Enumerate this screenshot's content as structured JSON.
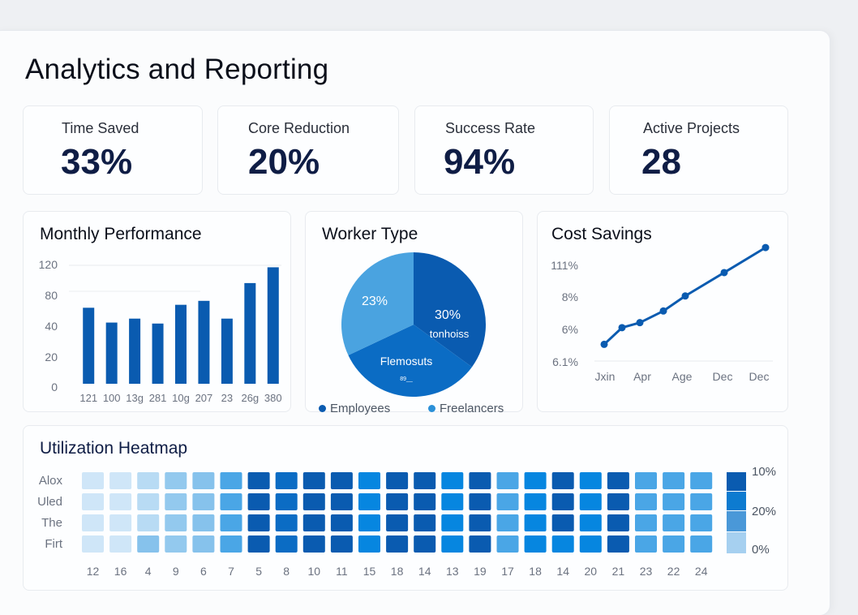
{
  "page": {
    "title": "Analytics and Reporting"
  },
  "kpis": [
    {
      "label": "Time Saved",
      "value": "33%"
    },
    {
      "label": "Core Reduction",
      "value": "20%"
    },
    {
      "label": "Success Rate",
      "value": "94%"
    },
    {
      "label": "Active Projects",
      "value": "28"
    }
  ],
  "colors": {
    "primary": "#0a5bb0",
    "light": "#4aa3e0",
    "mid": "#0b6cc4",
    "kpi_value": "#0f1d45"
  },
  "chart_data": [
    {
      "type": "bar",
      "title": "Monthly Performance",
      "categories": [
        "121",
        "100",
        "13g",
        "281",
        "10g",
        "207",
        "23",
        "26g",
        "380"
      ],
      "values": [
        77,
        62,
        66,
        61,
        80,
        84,
        66,
        102,
        118
      ],
      "ytick_labels": [
        "0",
        "20",
        "40",
        "80",
        "120"
      ],
      "ytick_values": [
        0,
        20,
        40,
        60,
        80
      ],
      "ylim": [
        0,
        120
      ],
      "xlabel": "",
      "ylabel": "",
      "grid": true
    },
    {
      "type": "pie",
      "title": "Worker Type",
      "slices": [
        {
          "label": "30% tonhoiss",
          "value": 35,
          "color": "#0a5bb0"
        },
        {
          "label": "Flemosuts",
          "sub": "89__",
          "value": 33,
          "color": "#0b6cc4"
        },
        {
          "label": "23%",
          "value": 32,
          "color": "#4aa3e0"
        }
      ],
      "legend": [
        {
          "label": "Employees",
          "color": "#0a5bb0"
        },
        {
          "label": "Freelancers",
          "color": "#2a90d8"
        }
      ],
      "legend_position": "bottom"
    },
    {
      "type": "line",
      "title": "Cost Savings",
      "x_labels": [
        "Jxin",
        "Apr",
        "Age",
        "Dec",
        "Dec"
      ],
      "values": [
        5.0,
        6.0,
        6.3,
        7.0,
        7.9,
        9.3,
        10.8
      ],
      "ytick_labels": [
        "6.1%",
        "6%",
        "8%",
        "111%"
      ],
      "ytick_values": [
        4,
        6,
        8,
        10
      ],
      "ylim": [
        4,
        11
      ],
      "grid": false
    },
    {
      "type": "heatmap",
      "title": "Utilization Heatmap",
      "rows": [
        "Alox",
        "Uled",
        "The",
        "Firt"
      ],
      "columns": [
        "12",
        "16",
        "4",
        "9",
        "6",
        "7",
        "5",
        "8",
        "10",
        "11",
        "15",
        "18",
        "14",
        "13",
        "19",
        "17",
        "18",
        "14",
        "20",
        "21",
        "23",
        "22",
        "24"
      ],
      "values": [
        [
          1,
          1,
          2,
          4,
          3,
          5,
          8,
          7,
          8,
          8,
          6,
          8,
          8,
          6,
          8,
          5,
          6,
          8,
          6,
          8,
          5,
          5,
          5
        ],
        [
          1,
          1,
          2,
          4,
          3,
          5,
          8,
          7,
          8,
          8,
          6,
          8,
          8,
          6,
          8,
          5,
          6,
          8,
          6,
          8,
          5,
          5,
          5
        ],
        [
          1,
          1,
          2,
          4,
          3,
          5,
          8,
          7,
          8,
          8,
          6,
          8,
          8,
          6,
          8,
          5,
          6,
          8,
          6,
          8,
          5,
          5,
          5
        ],
        [
          1,
          1,
          3,
          4,
          3,
          5,
          8,
          7,
          8,
          8,
          6,
          8,
          8,
          6,
          8,
          5,
          6,
          6,
          6,
          8,
          5,
          5,
          5
        ]
      ],
      "scale_colors": [
        "#d6ebf9",
        "#cfe6f8",
        "#b8dbf4",
        "#86c2ec",
        "#93c9ee",
        "#4aa6e6",
        "#0686e0",
        "#0b6cc4",
        "#0a5bb0"
      ],
      "legend_labels": [
        "10%",
        "20%",
        "0%"
      ],
      "legend_colors": [
        "#0a5bb0",
        "#0d7bd0",
        "#4a98d8",
        "#a6d0f0"
      ]
    }
  ]
}
